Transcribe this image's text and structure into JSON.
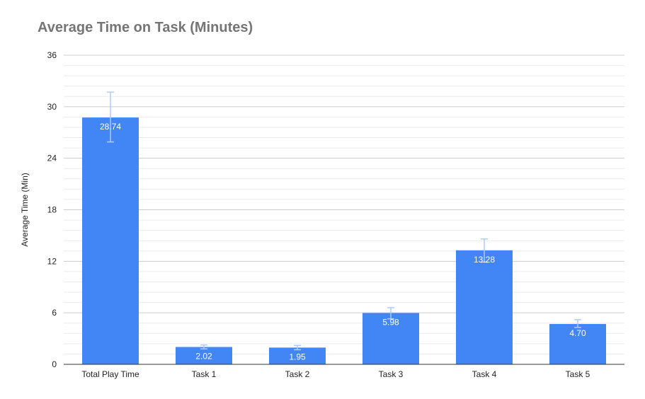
{
  "chart_data": {
    "type": "bar",
    "title": "Average Time on Task (Minutes)",
    "xlabel": "",
    "ylabel": "Average Time (Min)",
    "categories": [
      "Total Play Time",
      "Task 1",
      "Task 2",
      "Task 3",
      "Task 4",
      "Task 5"
    ],
    "values": [
      28.74,
      2.02,
      1.95,
      5.98,
      13.28,
      4.7
    ],
    "data_labels": [
      "28.74",
      "2.02",
      "1.95",
      "5.98",
      "13.28",
      "4.70"
    ],
    "error_bars": [
      {
        "low": 25.9,
        "high": 31.7
      },
      {
        "low": 1.8,
        "high": 2.25
      },
      {
        "low": 1.7,
        "high": 2.2
      },
      {
        "low": 5.3,
        "high": 6.6
      },
      {
        "low": 11.9,
        "high": 14.6
      },
      {
        "low": 4.3,
        "high": 5.2
      }
    ],
    "ylim": [
      0,
      36
    ],
    "yticks": [
      "0",
      "6",
      "12",
      "18",
      "24",
      "30",
      "36"
    ],
    "grid": true,
    "legend": "none",
    "colors": {
      "bar": "#4285f4",
      "error_bar": "#aecbfa",
      "major_grid": "#cccccc",
      "minor_grid": "#ebebeb",
      "axis": "#333333",
      "title": "#757575"
    }
  }
}
